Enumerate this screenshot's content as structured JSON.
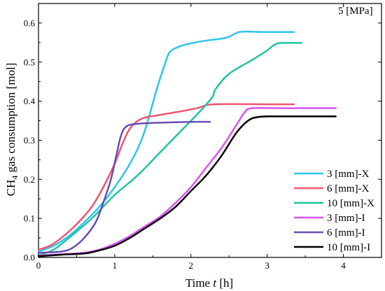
{
  "chart_data": {
    "type": "line",
    "annotation": "5 [MPa]",
    "xlabel": {
      "prefix": "Time ",
      "var": "t",
      "suffix": " [h]"
    },
    "ylabel": {
      "pre": "CH",
      "sub": "4",
      "post": " gas consumption [mol]"
    },
    "xlim": [
      0,
      4.5
    ],
    "ylim": [
      0,
      0.65
    ],
    "xticks": [
      0,
      1,
      2,
      3,
      4
    ],
    "yticks": [
      0.0,
      0.1,
      0.2,
      0.3,
      0.4,
      0.5,
      0.6
    ],
    "ytick_labels": [
      "0.0",
      "0.1",
      "0.2",
      "0.3",
      "0.4",
      "0.5",
      "0.6"
    ],
    "grid": false,
    "legend_position": "bottom-right",
    "series": [
      {
        "name": "3 [mm]-X",
        "color": "#2ec5e8",
        "points": [
          [
            0,
            0.015
          ],
          [
            0.2,
            0.03
          ],
          [
            0.4,
            0.055
          ],
          [
            0.6,
            0.09
          ],
          [
            0.8,
            0.13
          ],
          [
            1.0,
            0.18
          ],
          [
            1.2,
            0.24
          ],
          [
            1.35,
            0.3
          ],
          [
            1.45,
            0.36
          ],
          [
            1.55,
            0.43
          ],
          [
            1.65,
            0.49
          ],
          [
            1.72,
            0.525
          ],
          [
            1.85,
            0.54
          ],
          [
            2.0,
            0.548
          ],
          [
            2.2,
            0.555
          ],
          [
            2.4,
            0.56
          ],
          [
            2.5,
            0.565
          ],
          [
            2.6,
            0.575
          ],
          [
            2.7,
            0.578
          ],
          [
            3.0,
            0.577
          ],
          [
            3.35,
            0.577
          ]
        ]
      },
      {
        "name": "6 [mm]-X",
        "color": "#f0566e",
        "points": [
          [
            0,
            0.02
          ],
          [
            0.15,
            0.03
          ],
          [
            0.3,
            0.05
          ],
          [
            0.5,
            0.085
          ],
          [
            0.7,
            0.13
          ],
          [
            0.85,
            0.18
          ],
          [
            1.0,
            0.24
          ],
          [
            1.1,
            0.29
          ],
          [
            1.2,
            0.33
          ],
          [
            1.35,
            0.355
          ],
          [
            1.6,
            0.365
          ],
          [
            1.9,
            0.375
          ],
          [
            2.1,
            0.383
          ],
          [
            2.3,
            0.392
          ],
          [
            3.0,
            0.392
          ],
          [
            3.35,
            0.392
          ]
        ]
      },
      {
        "name": "10 [mm]-X",
        "color": "#1fc3a3",
        "points": [
          [
            0,
            0.005
          ],
          [
            0.2,
            0.02
          ],
          [
            0.4,
            0.05
          ],
          [
            0.7,
            0.1
          ],
          [
            1.0,
            0.16
          ],
          [
            1.3,
            0.21
          ],
          [
            1.6,
            0.27
          ],
          [
            1.9,
            0.33
          ],
          [
            2.1,
            0.37
          ],
          [
            2.28,
            0.41
          ],
          [
            2.32,
            0.43
          ],
          [
            2.5,
            0.47
          ],
          [
            2.8,
            0.505
          ],
          [
            3.0,
            0.53
          ],
          [
            3.1,
            0.545
          ],
          [
            3.2,
            0.549
          ],
          [
            3.45,
            0.549
          ]
        ]
      },
      {
        "name": "3 [mm]-I",
        "color": "#d855f0",
        "points": [
          [
            0,
            0.005
          ],
          [
            0.3,
            0.008
          ],
          [
            0.6,
            0.012
          ],
          [
            0.8,
            0.02
          ],
          [
            1.0,
            0.035
          ],
          [
            1.2,
            0.055
          ],
          [
            1.4,
            0.08
          ],
          [
            1.6,
            0.105
          ],
          [
            1.8,
            0.14
          ],
          [
            2.0,
            0.18
          ],
          [
            2.2,
            0.23
          ],
          [
            2.4,
            0.28
          ],
          [
            2.6,
            0.34
          ],
          [
            2.7,
            0.37
          ],
          [
            2.8,
            0.382
          ],
          [
            3.2,
            0.382
          ],
          [
            3.9,
            0.382
          ]
        ]
      },
      {
        "name": "6 [mm]-I",
        "color": "#6a4cb3",
        "points": [
          [
            0,
            0.012
          ],
          [
            0.3,
            0.015
          ],
          [
            0.45,
            0.025
          ],
          [
            0.6,
            0.05
          ],
          [
            0.75,
            0.09
          ],
          [
            0.85,
            0.14
          ],
          [
            0.95,
            0.2
          ],
          [
            1.02,
            0.26
          ],
          [
            1.08,
            0.31
          ],
          [
            1.15,
            0.335
          ],
          [
            1.3,
            0.342
          ],
          [
            1.6,
            0.345
          ],
          [
            2.0,
            0.347
          ],
          [
            2.25,
            0.347
          ]
        ]
      },
      {
        "name": "10 [mm]-I",
        "color": "#000000",
        "points": [
          [
            0,
            0.003
          ],
          [
            0.3,
            0.007
          ],
          [
            0.6,
            0.01
          ],
          [
            0.8,
            0.018
          ],
          [
            1.0,
            0.03
          ],
          [
            1.2,
            0.05
          ],
          [
            1.4,
            0.075
          ],
          [
            1.6,
            0.1
          ],
          [
            1.8,
            0.13
          ],
          [
            2.0,
            0.17
          ],
          [
            2.2,
            0.21
          ],
          [
            2.4,
            0.26
          ],
          [
            2.6,
            0.32
          ],
          [
            2.75,
            0.35
          ],
          [
            2.9,
            0.36
          ],
          [
            3.2,
            0.361
          ],
          [
            3.9,
            0.361
          ]
        ]
      }
    ]
  }
}
